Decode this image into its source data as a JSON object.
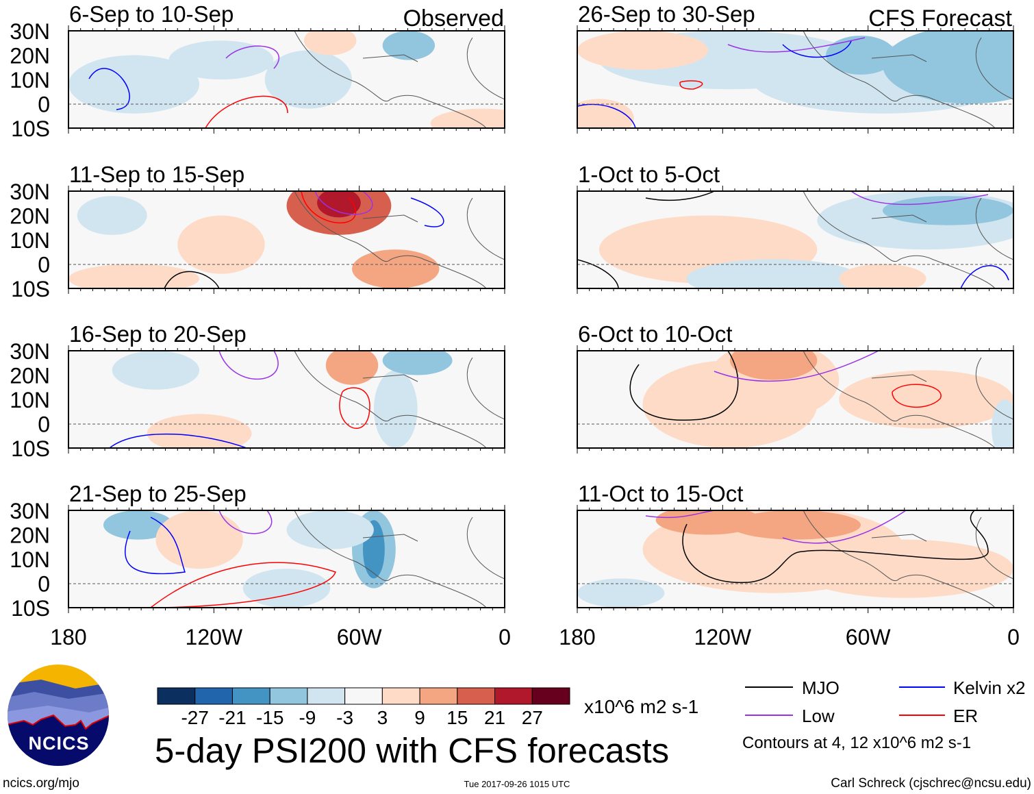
{
  "title": "5-day PSI200 with CFS forecasts",
  "columns": {
    "left": "Observed",
    "right": "CFS Forecast"
  },
  "panels_left": [
    "6-Sep to 10-Sep",
    "11-Sep to 15-Sep",
    "16-Sep to 20-Sep",
    "21-Sep to 25-Sep"
  ],
  "panels_right": [
    "26-Sep to 30-Sep",
    "1-Oct to 5-Oct",
    "6-Oct to 10-Oct",
    "11-Oct to 15-Oct"
  ],
  "lat_labels": [
    "30N",
    "20N",
    "10N",
    "0",
    "10S"
  ],
  "lon_labels": [
    "180",
    "120W",
    "60W",
    "0"
  ],
  "colorbar": {
    "colors": [
      "#0b305f",
      "#2166ac",
      "#4393c3",
      "#92c5de",
      "#d1e5f0",
      "#f7f7f7",
      "#fddbc7",
      "#f4a582",
      "#d6604d",
      "#b2182b",
      "#67001f"
    ],
    "ticks": [
      "-27",
      "-21",
      "-15",
      "-9",
      "-3",
      "3",
      "9",
      "15",
      "21",
      "27"
    ],
    "units": "x10^6 m2 s-1"
  },
  "legend": {
    "items": [
      {
        "label": "MJO",
        "color": "#000000"
      },
      {
        "label": "Low",
        "color": "#9a32e6"
      },
      {
        "label": "Kelvin x2",
        "color": "#0000ff"
      },
      {
        "label": "ER",
        "color": "#ff0000"
      }
    ],
    "contours_note": "Contours at 4, 12 x10^6 m2 s-1"
  },
  "footer": {
    "logo_text": "NCICS",
    "url": "ncics.org/mjo",
    "timestamp": "Tue 2017-09-26 1015 UTC",
    "author": "Carl Schreck (cjschrec@ncsu.edu)"
  }
}
